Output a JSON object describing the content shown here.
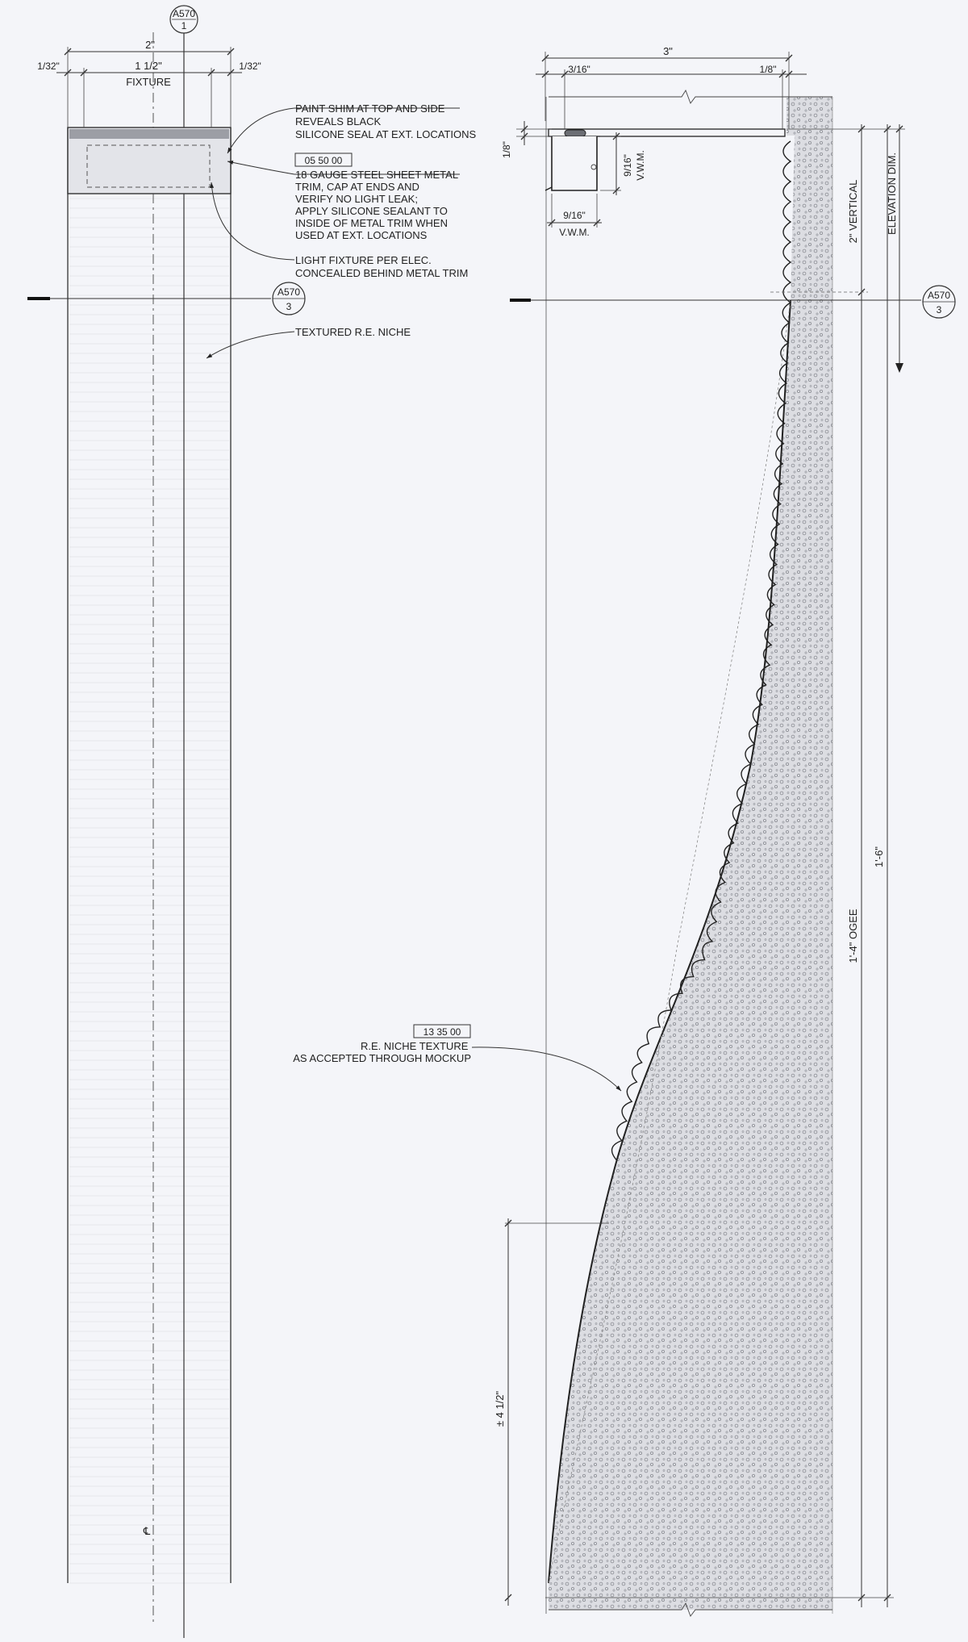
{
  "section_marks": {
    "top": {
      "sheet": "A570",
      "num": "1"
    },
    "left_cut": {
      "sheet": "A570",
      "num": "3"
    },
    "right_cut": {
      "sheet": "A570",
      "num": "3"
    }
  },
  "left_detail": {
    "dim_overall": "2\"",
    "dim_left_gap": "1/32\"",
    "dim_right_gap": "1/32\"",
    "dim_fixture": "1 1/2\"",
    "fixture_label": "FIXTURE",
    "centerline_symbol": "℄"
  },
  "notes": {
    "paint_shim": [
      "PAINT SHIM AT TOP AND SIDE",
      "REVEALS BLACK",
      "SILICONE SEAL AT EXT. LOCATIONS"
    ],
    "spec_metal": "05 50 00",
    "metal_trim": [
      "18 GAUGE STEEL SHEET METAL",
      "TRIM, CAP AT ENDS AND",
      "VERIFY NO LIGHT LEAK;",
      "APPLY SILICONE SEALANT TO",
      "INSIDE OF METAL TRIM WHEN",
      "USED AT EXT. LOCATIONS"
    ],
    "light_fixture": [
      "LIGHT FIXTURE PER ELEC.",
      "CONCEALED BEHIND METAL TRIM"
    ],
    "textured_niche": "TEXTURED R.E. NICHE",
    "spec_texture": "13 35 00",
    "niche_texture": [
      "R.E. NICHE TEXTURE",
      "AS ACCEPTED THROUGH MOCKUP"
    ]
  },
  "right_detail": {
    "dim_overall": "3\"",
    "dim_left": "3/16\"",
    "dim_right": "1/8\"",
    "dim_trim_thk": "1/8\"",
    "dim_trim_height": "9/16\"",
    "dim_trim_height_note": "V.W.M.",
    "dim_trim_width": "9/16\"",
    "dim_trim_width_note": "V.W.M.",
    "dim_vertical": "2\" VERTICAL",
    "dim_elevation": "ELEVATION DIM.",
    "dim_total": "1'-6\"",
    "dim_ogee": "1'-4\" OGEE",
    "dim_bottom": "± 4 1/2\""
  }
}
